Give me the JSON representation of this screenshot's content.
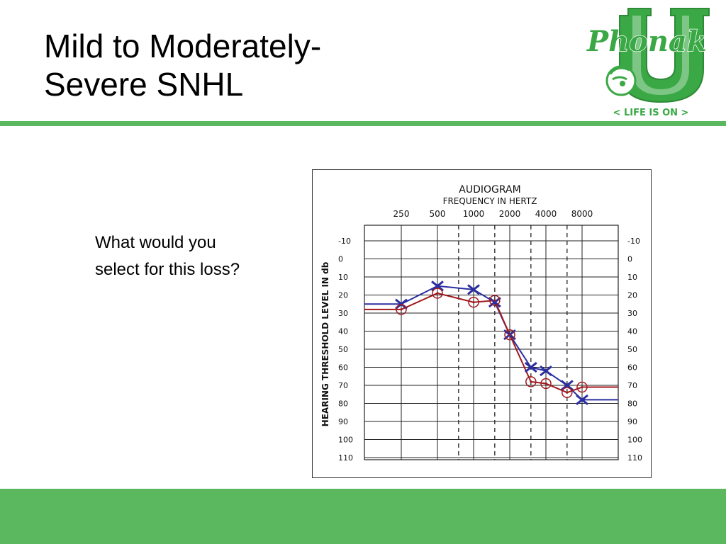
{
  "slide": {
    "title_lines": [
      "Mild to Moderately-",
      "Severe SNHL"
    ],
    "body_lines": [
      "What would you",
      "select for this loss?"
    ]
  },
  "logo": {
    "brand": "Phonak",
    "letter": "U",
    "tagline": "< LIFE IS ON >",
    "color": "#3aa845"
  },
  "colors": {
    "accent_green": "#5cb85f",
    "series_x": "#2b2ea0",
    "series_o": "#a0191e"
  },
  "chart_data": {
    "type": "line",
    "title": "AUDIOGRAM",
    "subtitle": "FREQUENCY IN HERTZ",
    "ylabel": "HEARING THRESHOLD LEVEL IN db",
    "x_major_ticks": [
      250,
      500,
      1000,
      2000,
      4000,
      8000
    ],
    "y_ticks": [
      -10,
      0,
      10,
      20,
      30,
      40,
      50,
      60,
      70,
      80,
      90,
      100,
      110
    ],
    "ylim": [
      -10,
      110
    ],
    "y_inverted": true,
    "x_scale": "log",
    "dashed_frequencies": [
      750,
      1500,
      3000,
      6000
    ],
    "grid": true,
    "series": [
      {
        "marker": "x",
        "color": "#2b2ea0",
        "line_extends_to_edges": true,
        "points": [
          {
            "x": 250,
            "y": 25
          },
          {
            "x": 500,
            "y": 15
          },
          {
            "x": 1000,
            "y": 17
          },
          {
            "x": 1500,
            "y": 24
          },
          {
            "x": 2000,
            "y": 42
          },
          {
            "x": 3000,
            "y": 60
          },
          {
            "x": 4000,
            "y": 62
          },
          {
            "x": 6000,
            "y": 70
          },
          {
            "x": 8000,
            "y": 78
          }
        ]
      },
      {
        "marker": "o",
        "color": "#a0191e",
        "line_extends_to_edges": true,
        "points": [
          {
            "x": 250,
            "y": 28
          },
          {
            "x": 500,
            "y": 19
          },
          {
            "x": 1000,
            "y": 24
          },
          {
            "x": 1500,
            "y": 23
          },
          {
            "x": 2000,
            "y": 42
          },
          {
            "x": 3000,
            "y": 68
          },
          {
            "x": 4000,
            "y": 69
          },
          {
            "x": 6000,
            "y": 74
          },
          {
            "x": 8000,
            "y": 71
          }
        ]
      }
    ]
  }
}
